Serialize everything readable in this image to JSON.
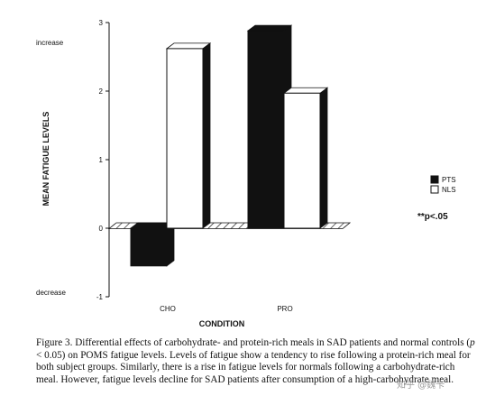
{
  "chart_data": {
    "type": "bar",
    "title": "",
    "xlabel": "CONDITION",
    "ylabel": "MEAN FATIGUE LEVELS",
    "ylim": [
      -1,
      3
    ],
    "yticks": [
      "-1",
      "0",
      "1",
      "2",
      "3"
    ],
    "y_annotations": {
      "top": "increase",
      "bottom": "decrease"
    },
    "categories": [
      "CHO",
      "PRO"
    ],
    "series": [
      {
        "name": "PTS",
        "color": "#111111",
        "values": [
          -0.55,
          2.88
        ]
      },
      {
        "name": "NLS",
        "color": "#ffffff",
        "values": [
          2.62,
          1.97
        ]
      }
    ],
    "legend_position": "right",
    "annotation": "**p<.05",
    "grid": false
  },
  "caption": {
    "label": "Figure 3.",
    "text_before_p": " Differential effects of carbohydrate- and protein-rich meals in SAD patients and normal controls (",
    "p_symbol": "p",
    "text_after_p": " < 0.05) on POMS fatigue levels. Levels of fatigue show a tendency to rise following a protein-rich meal for both subject groups. Similarly, there is a rise in fatigue levels for normals following a carbohydrate-rich meal. However, fatigue levels decline for SAD patients after consumption of a high-carbohydrate meal."
  },
  "watermark": "知乎 @魏卡"
}
